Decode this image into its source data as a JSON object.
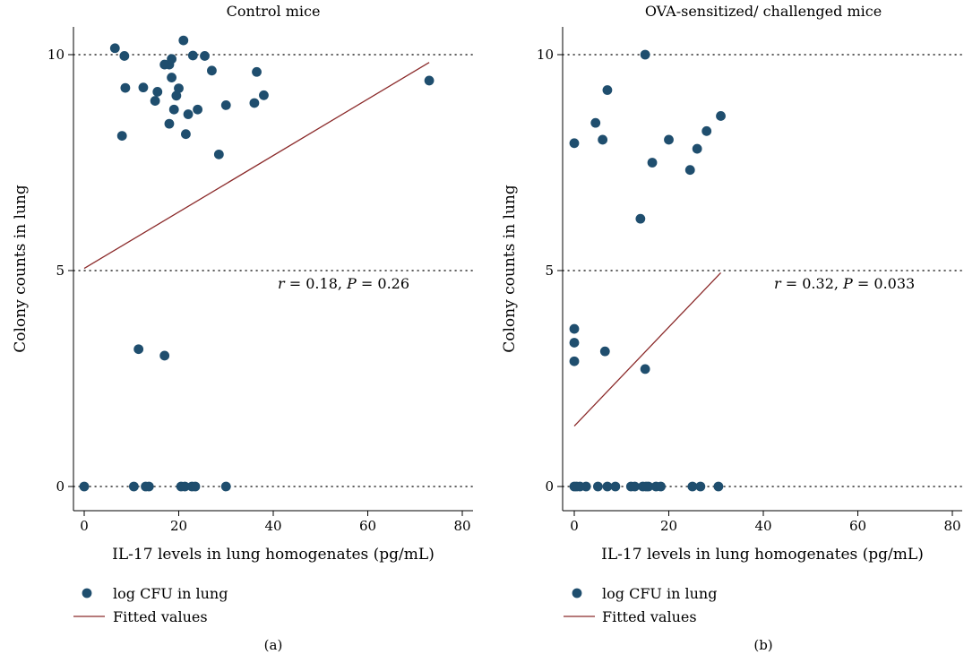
{
  "chart_data": [
    {
      "type": "scatter",
      "title": "Control mice",
      "xlabel": "IL-17 levels in lung homogenates (pg/mL)",
      "ylabel": "Colony counts in lung",
      "xlim": [
        -3,
        82
      ],
      "ylim": [
        -0.5,
        10.6
      ],
      "x_ticks": [
        0,
        20,
        40,
        60,
        80
      ],
      "y_ticks": [
        0,
        5,
        10
      ],
      "grid": "dotted horizontal at y ticks",
      "legend_placement": "bottom",
      "series": [
        {
          "name": "log CFU in lung",
          "kind": "scatter",
          "color": "#1f4e6e",
          "points": [
            [
              6.5,
              10.15
            ],
            [
              8.5,
              9.97
            ],
            [
              21,
              10.33
            ],
            [
              23,
              9.98
            ],
            [
              25.5,
              9.97
            ],
            [
              17,
              9.77
            ],
            [
              18,
              9.77
            ],
            [
              18.5,
              9.9
            ],
            [
              27,
              9.63
            ],
            [
              36.5,
              9.6
            ],
            [
              8.7,
              9.23
            ],
            [
              12.5,
              9.24
            ],
            [
              15.5,
              9.14
            ],
            [
              20,
              9.22
            ],
            [
              19.5,
              9.05
            ],
            [
              38,
              9.06
            ],
            [
              15,
              8.93
            ],
            [
              18.5,
              9.47
            ],
            [
              36,
              8.88
            ],
            [
              30,
              8.83
            ],
            [
              19,
              8.73
            ],
            [
              24,
              8.73
            ],
            [
              22,
              8.62
            ],
            [
              18,
              8.4
            ],
            [
              8,
              8.12
            ],
            [
              21.5,
              8.16
            ],
            [
              28.5,
              7.69
            ],
            [
              73,
              9.4
            ],
            [
              11.5,
              3.18
            ],
            [
              17,
              3.03
            ],
            [
              0,
              0
            ],
            [
              10.5,
              0
            ],
            [
              13,
              0
            ],
            [
              13.7,
              0
            ],
            [
              20.5,
              0
            ],
            [
              21.3,
              0
            ],
            [
              22.8,
              0
            ],
            [
              23.5,
              0
            ],
            [
              30,
              0
            ]
          ]
        },
        {
          "name": "Fitted values",
          "kind": "line",
          "color": "#8b2a2a",
          "points": [
            [
              0,
              5.05
            ],
            [
              73,
              9.82
            ]
          ]
        }
      ],
      "annotation": {
        "r": "r",
        "r_value": "= 0.18,",
        "p": "P",
        "p_value": "= 0.26"
      },
      "panel_label": "(a)"
    },
    {
      "type": "scatter",
      "title": "OVA-sensitized/ challenged mice",
      "xlabel": "IL-17 levels in lung homogenates (pg/mL)",
      "ylabel": "Colony counts in lung",
      "xlim": [
        -3,
        82
      ],
      "ylim": [
        -0.5,
        10.6
      ],
      "x_ticks": [
        0,
        20,
        40,
        60,
        80
      ],
      "y_ticks": [
        0,
        5,
        10
      ],
      "grid": "dotted horizontal at y ticks",
      "legend_placement": "bottom",
      "series": [
        {
          "name": "log CFU in lung",
          "kind": "scatter",
          "color": "#1f4e6e",
          "points": [
            [
              15,
              10.0
            ],
            [
              7,
              9.18
            ],
            [
              4.5,
              8.42
            ],
            [
              31,
              8.58
            ],
            [
              0,
              7.95
            ],
            [
              6,
              8.03
            ],
            [
              20,
              8.03
            ],
            [
              28,
              8.23
            ],
            [
              16.5,
              7.5
            ],
            [
              26,
              7.82
            ],
            [
              24.5,
              7.33
            ],
            [
              14,
              6.2
            ],
            [
              0,
              3.65
            ],
            [
              0,
              3.33
            ],
            [
              6.5,
              3.13
            ],
            [
              0,
              2.9
            ],
            [
              15,
              2.72
            ],
            [
              0,
              0
            ],
            [
              0.5,
              0
            ],
            [
              1.2,
              0
            ],
            [
              2.5,
              0
            ],
            [
              5,
              0
            ],
            [
              7,
              0
            ],
            [
              8.7,
              0
            ],
            [
              12,
              0
            ],
            [
              12.8,
              0
            ],
            [
              14.5,
              0
            ],
            [
              15.2,
              0
            ],
            [
              15.7,
              0
            ],
            [
              17.3,
              0
            ],
            [
              18.3,
              0
            ],
            [
              25,
              0
            ],
            [
              26.7,
              0
            ],
            [
              30.5,
              0
            ]
          ]
        },
        {
          "name": "Fitted values",
          "kind": "line",
          "color": "#8b2a2a",
          "points": [
            [
              0,
              1.4
            ],
            [
              31,
              4.95
            ]
          ]
        }
      ],
      "annotation": {
        "r": "r",
        "r_value": "= 0.32,",
        "p": "P",
        "p_value": "= 0.033"
      },
      "panel_label": "(b)"
    }
  ]
}
